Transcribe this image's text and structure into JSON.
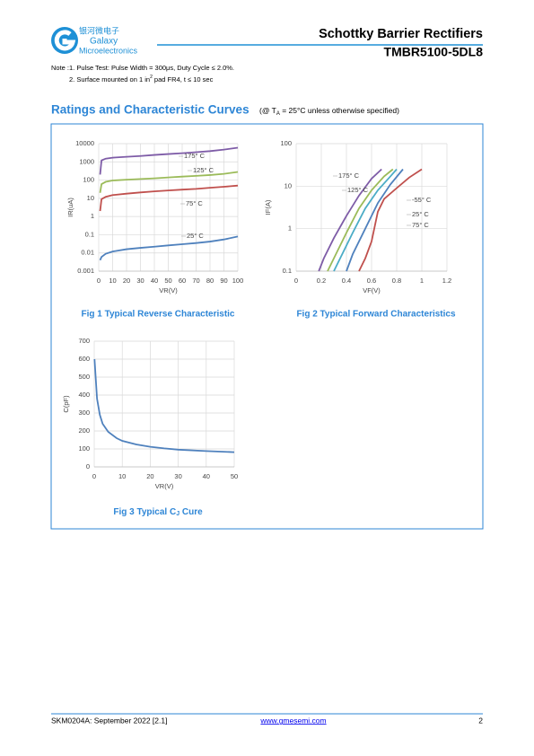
{
  "header": {
    "logo_cn": "银河微电子",
    "logo_name": "Galaxy",
    "logo_sub": "Microelectronics",
    "title": "Schottky Barrier Rectifiers",
    "part": "TMBR5100-5DL8"
  },
  "notes": {
    "note1": "Note :1. Pulse Test: Pulse Width = 300μs, Duty Cycle ≤ 2.0%.",
    "note2": "2. Surface mounted on 1 in",
    "note2_sup": "2",
    "note2_end": " pad FR4, t ≤ 10 sec"
  },
  "section": {
    "title": "Ratings and Characteristic Curves",
    "cond": "(@ T",
    "cond_sub": "A",
    "cond_end": " = 25°C unless otherwise specified)"
  },
  "chart_data": [
    {
      "type": "line",
      "title": "Fig 1    Typical Reverse Characteristic",
      "xlabel": "VR(V)",
      "ylabel": "IR(uA)",
      "log_y": true,
      "grid": true,
      "x": [
        1,
        2,
        5,
        10,
        20,
        30,
        40,
        50,
        60,
        70,
        80,
        90,
        100
      ],
      "series": [
        {
          "name": "175° C",
          "color": "#7e5ca7",
          "values": [
            200,
            1200,
            1500,
            1700,
            1900,
            2100,
            2400,
            2700,
            3000,
            3400,
            3900,
            4700,
            6000
          ]
        },
        {
          "name": "125° C",
          "color": "#9bbb59",
          "values": [
            20,
            60,
            80,
            95,
            105,
            115,
            125,
            140,
            155,
            170,
            190,
            220,
            280
          ]
        },
        {
          "name": "75° C",
          "color": "#c0504d",
          "values": [
            2,
            9,
            12,
            15,
            18,
            21,
            24,
            27,
            30,
            33,
            38,
            43,
            50
          ]
        },
        {
          "name": "25° C",
          "color": "#4f81bd",
          "values": [
            0.004,
            0.006,
            0.009,
            0.012,
            0.016,
            0.019,
            0.022,
            0.026,
            0.03,
            0.035,
            0.042,
            0.055,
            0.08
          ]
        }
      ],
      "xlim": [
        0,
        100
      ],
      "xticks": [
        0,
        10,
        20,
        30,
        40,
        50,
        60,
        70,
        80,
        90,
        100
      ],
      "ylim": [
        0.001,
        10000
      ],
      "yticks": [
        0.001,
        0.01,
        0.1,
        1,
        10,
        100,
        1000,
        10000
      ]
    },
    {
      "type": "line",
      "title": "Fig 2    Typical Forward Characteristics",
      "xlabel": "VF(V)",
      "ylabel": "IF(A)",
      "log_y": true,
      "grid": true,
      "series": [
        {
          "name": "175° C",
          "color": "#7e5ca7",
          "x": [
            0.18,
            0.22,
            0.3,
            0.4,
            0.5,
            0.6,
            0.68
          ],
          "values": [
            0.1,
            0.2,
            0.6,
            2,
            6,
            15,
            25
          ]
        },
        {
          "name": "125° C",
          "color": "#9bbb59",
          "x": [
            0.25,
            0.3,
            0.4,
            0.5,
            0.6,
            0.7,
            0.77
          ],
          "values": [
            0.1,
            0.2,
            0.8,
            3,
            8,
            17,
            25
          ]
        },
        {
          "name": "75° C",
          "color": "#4bacc6",
          "x": [
            0.3,
            0.35,
            0.45,
            0.55,
            0.65,
            0.75,
            0.8
          ],
          "values": [
            0.1,
            0.2,
            0.8,
            3,
            8,
            17,
            25
          ]
        },
        {
          "name": "25° C",
          "color": "#4f81bd",
          "x": [
            0.4,
            0.45,
            0.55,
            0.65,
            0.75,
            0.85
          ],
          "values": [
            0.1,
            0.25,
            1,
            4,
            11,
            25
          ]
        },
        {
          "name": "-55° C",
          "color": "#c0504d",
          "x": [
            0.5,
            0.55,
            0.6,
            0.65,
            0.7,
            0.8,
            0.9,
            1.0
          ],
          "values": [
            0.1,
            0.2,
            0.5,
            2.5,
            5,
            9,
            16,
            25
          ]
        }
      ],
      "xlim": [
        0,
        1.2
      ],
      "xticks": [
        0,
        0.2,
        0.4,
        0.6,
        0.8,
        1,
        1.2
      ],
      "ylim": [
        0.1,
        100
      ],
      "yticks": [
        0.1,
        1,
        10,
        100
      ]
    },
    {
      "type": "line",
      "title": "Fig 3 Typical C",
      "title_sub": "J",
      "title_end": " Cure",
      "xlabel": "VR(V)",
      "ylabel": "C(pF)",
      "log_y": false,
      "grid": true,
      "x": [
        0.1,
        1,
        2,
        3,
        5,
        8,
        10,
        15,
        20,
        25,
        30,
        40,
        50
      ],
      "series": [
        {
          "color": "#4f81bd",
          "values": [
            600,
            380,
            290,
            240,
            195,
            160,
            145,
            125,
            112,
            103,
            96,
            88,
            82
          ]
        }
      ],
      "xlim": [
        0,
        50
      ],
      "xticks": [
        0,
        10,
        20,
        30,
        40,
        50
      ],
      "ylim": [
        0,
        700
      ],
      "yticks": [
        0,
        100,
        200,
        300,
        400,
        500,
        600,
        700
      ]
    }
  ],
  "footer": {
    "doc": "SKM0204A: September 2022 [2.1]",
    "url": "www.gmesemi.com",
    "page": "2"
  }
}
